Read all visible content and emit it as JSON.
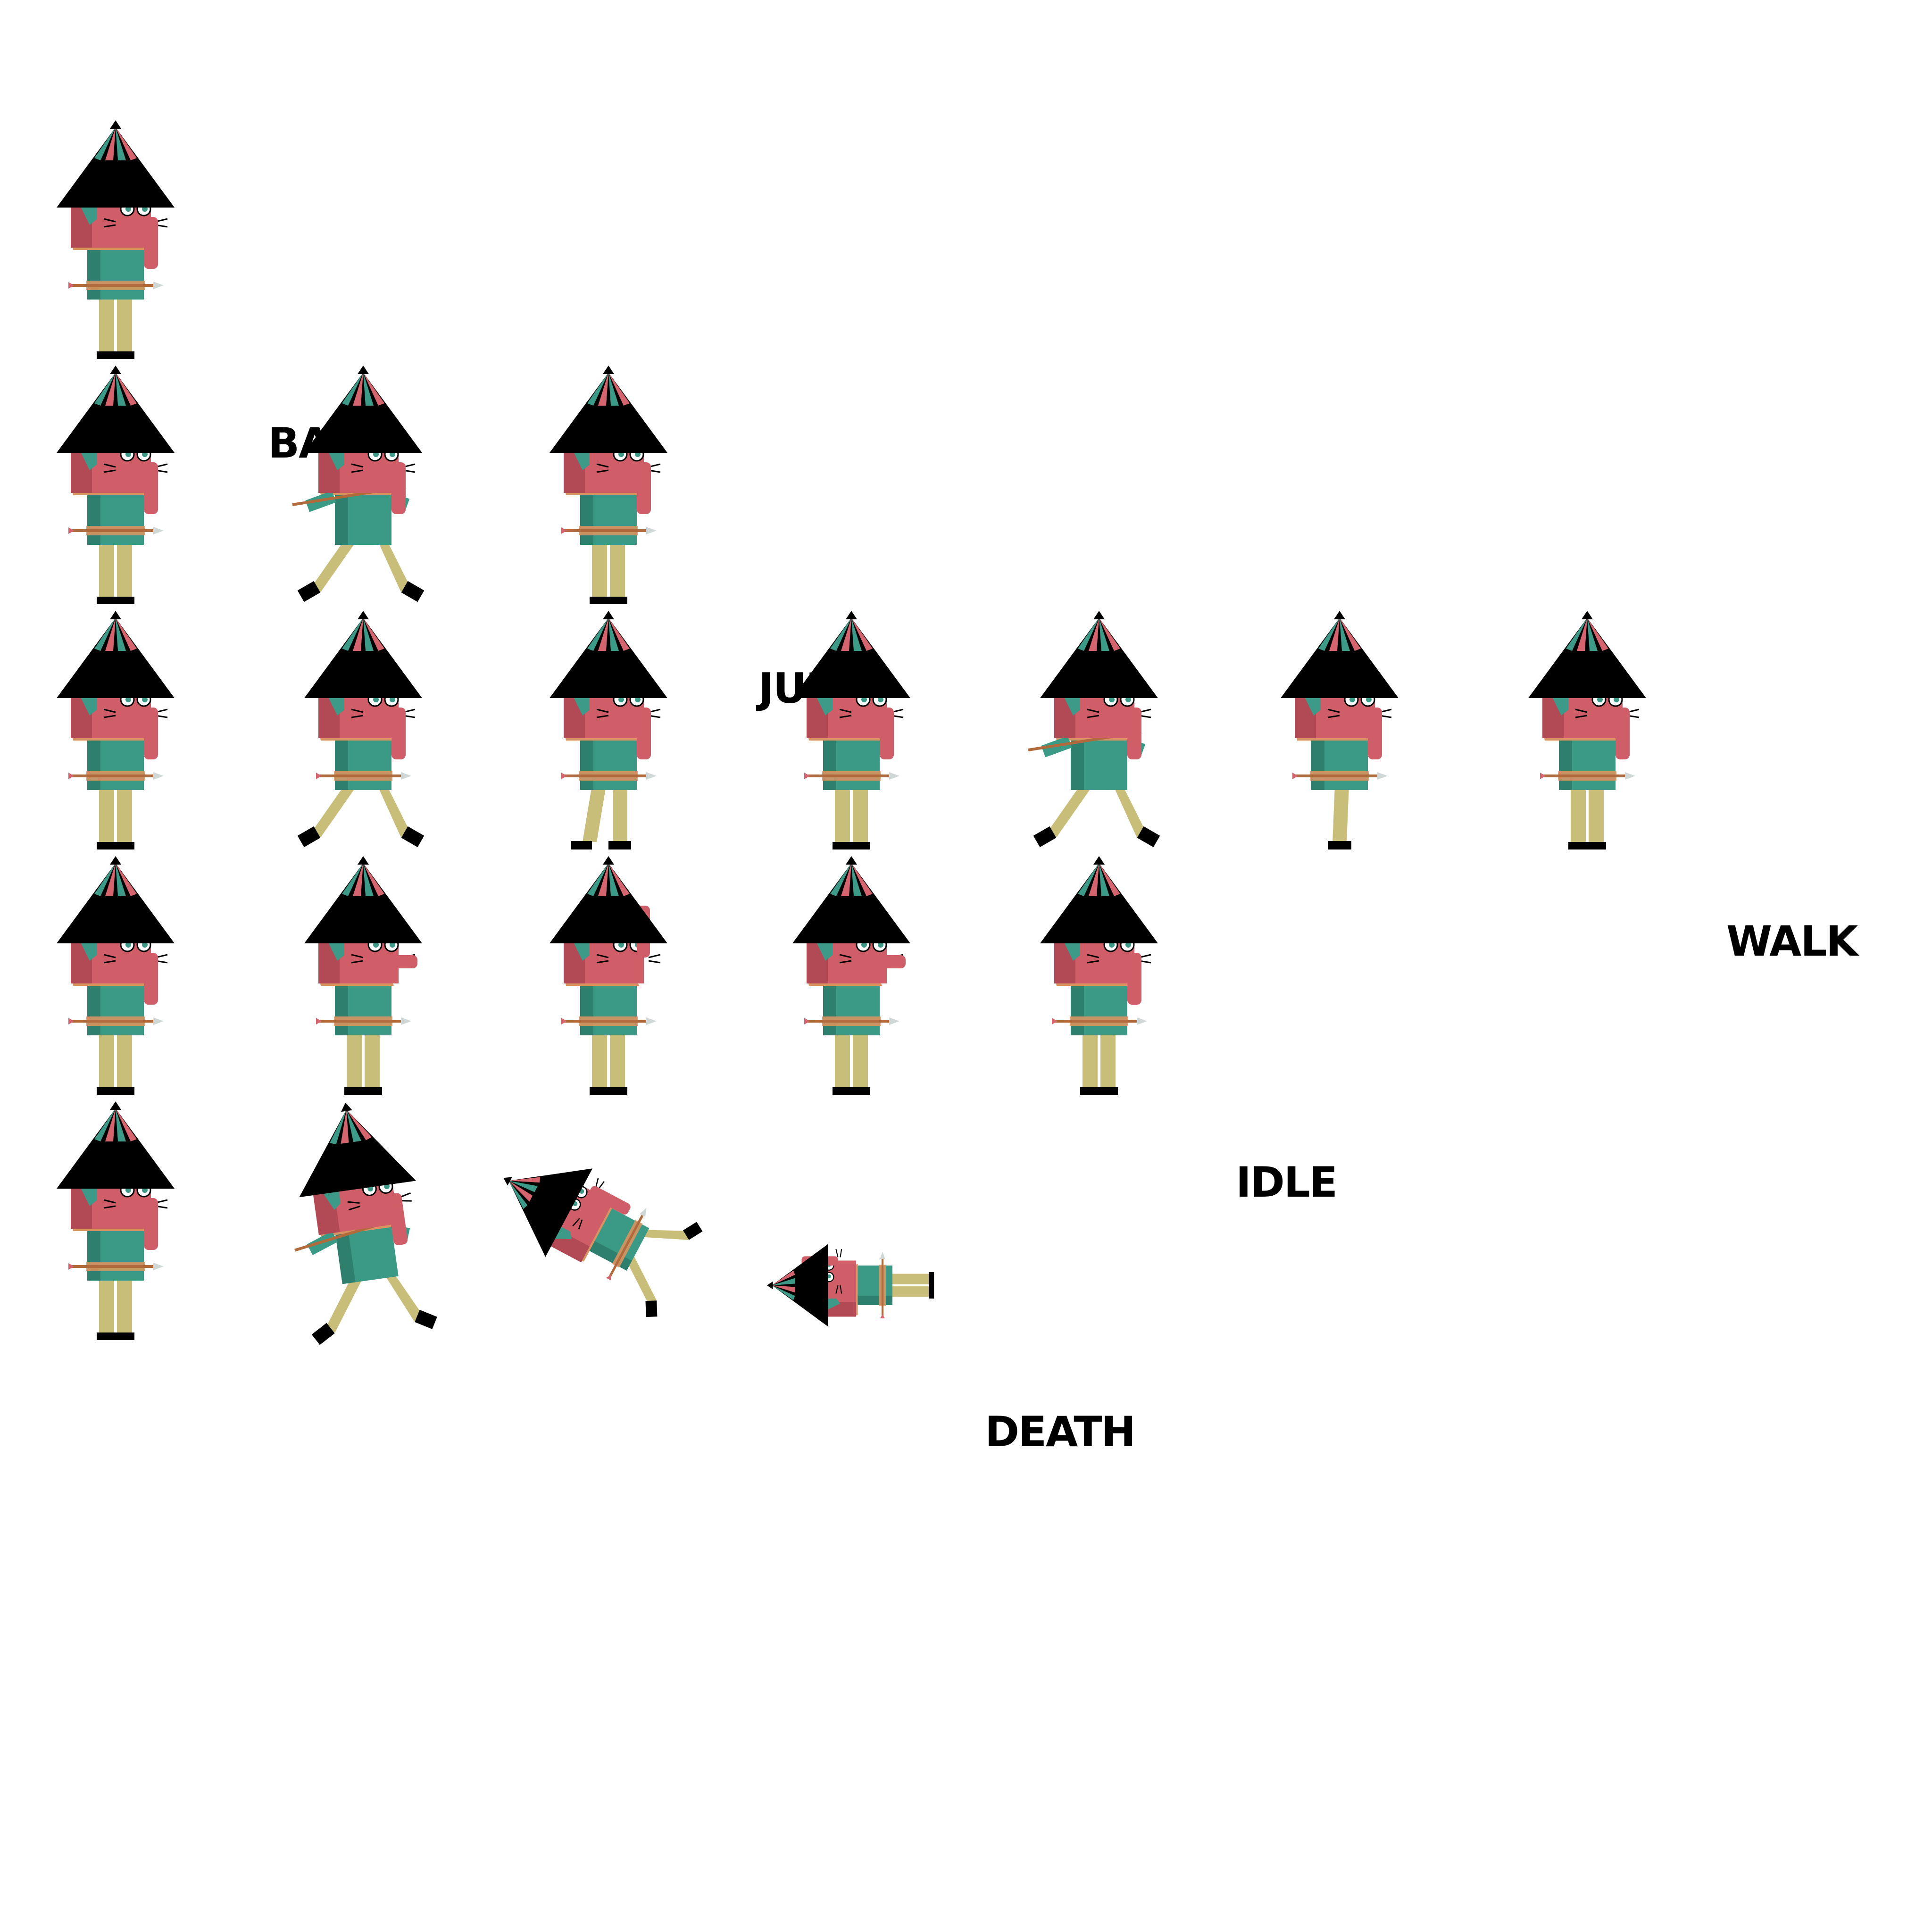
{
  "sheet": {
    "background": "#ffffff",
    "palette": {
      "hat": "#000000",
      "hat_stripe_red": "#d4646e",
      "hat_stripe_teal": "#3d9a88",
      "face": "#cf5e68",
      "face_shadow": "#b24a55",
      "collar": "#d99360",
      "tunic": "#3a9a85",
      "tunic_dark": "#2f7f6e",
      "pants": "#c8bd79",
      "boots": "#000000",
      "arrow_shaft": "#b06a3c",
      "arrow_head": "#cfd8d6"
    },
    "rows": [
      {
        "name": "base",
        "label": "BASE",
        "frames": [
          {
            "pose": "stand"
          }
        ]
      },
      {
        "name": "jump",
        "label": "JUMP",
        "frames": [
          {
            "pose": "stand"
          },
          {
            "pose": "jump"
          },
          {
            "pose": "stand"
          }
        ]
      },
      {
        "name": "walk",
        "label": "WALK",
        "frames": [
          {
            "pose": "stand"
          },
          {
            "pose": "stride"
          },
          {
            "pose": "step"
          },
          {
            "pose": "stand"
          },
          {
            "pose": "stride-wide"
          },
          {
            "pose": "step-narrow"
          },
          {
            "pose": "stand"
          }
        ]
      },
      {
        "name": "idle",
        "label": "IDLE",
        "frames": [
          {
            "pose": "stand"
          },
          {
            "pose": "stand-nose-out"
          },
          {
            "pose": "stand-nose-up"
          },
          {
            "pose": "stand-nose-out"
          },
          {
            "pose": "stand"
          }
        ]
      },
      {
        "name": "death",
        "label": "DEATH",
        "frames": [
          {
            "pose": "stand"
          },
          {
            "pose": "hit"
          },
          {
            "pose": "fall"
          },
          {
            "pose": "lying"
          }
        ]
      }
    ]
  }
}
